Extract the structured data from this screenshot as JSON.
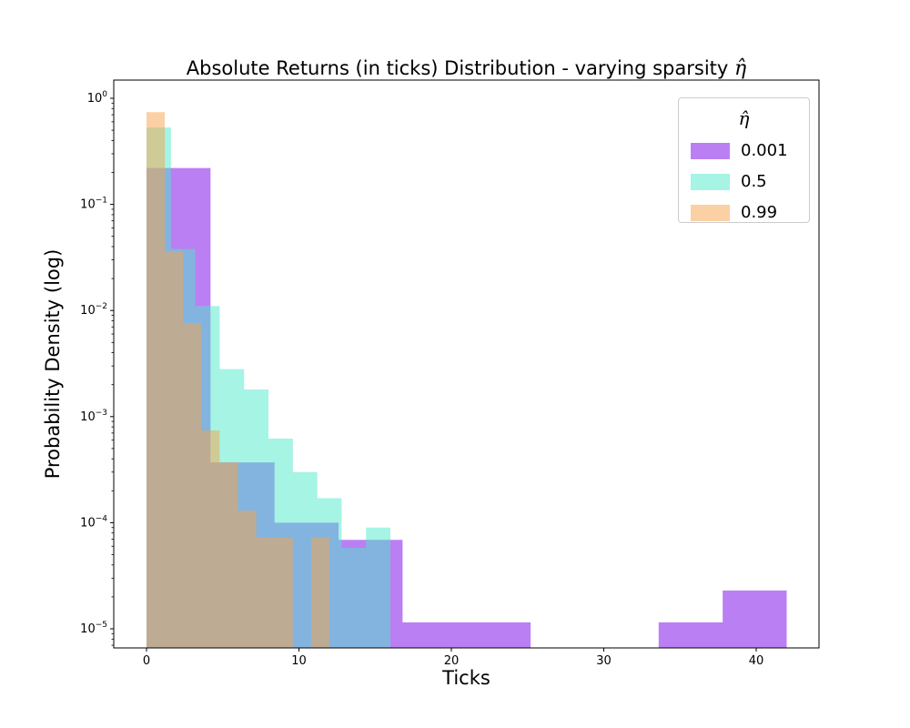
{
  "title": {
    "main": "Absolute Returns (in ticks) Distribution - varying sparsity ",
    "math": "η̂"
  },
  "axes": {
    "xlabel": "Ticks",
    "ylabel": "Probability Density (log)",
    "x_ticks": [
      0,
      10,
      20,
      30,
      40
    ],
    "y_tick_exponents": [
      0,
      -1,
      -2,
      -3,
      -4,
      -5
    ]
  },
  "legend": {
    "title": "η̂",
    "entries": [
      {
        "label": "0.001",
        "color": "rgba(119,0,233,0.5)"
      },
      {
        "label": "0.5",
        "color": "rgba(75,233,201,0.5)"
      },
      {
        "label": "0.99",
        "color": "rgba(247,161,73,0.5)"
      }
    ]
  },
  "chart_data": {
    "type": "bar",
    "subtype": "overlaid-histogram",
    "title": "Absolute Returns (in ticks) Distribution - varying sparsity η̂",
    "xlabel": "Ticks",
    "ylabel": "Probability Density (log)",
    "yscale": "log",
    "xlim": [
      -2.15,
      44.1
    ],
    "ylim": [
      6.6e-06,
      1.48
    ],
    "grid": false,
    "legend_position": "upper right",
    "series": [
      {
        "name": "0.001",
        "fill": "rgba(119,0,233,0.5)",
        "bin_start": 0,
        "bin_width": 4.2,
        "densities": [
          0.22,
          0.00037,
          0.0001,
          6.9e-05,
          1.15e-05,
          1.15e-05,
          0,
          0,
          1.15e-05,
          2.3e-05
        ]
      },
      {
        "name": "0.5",
        "fill": "rgba(75,233,201,0.5)",
        "bin_start": 0,
        "bin_width": 1.6,
        "densities": [
          0.53,
          0.038,
          0.011,
          0.0028,
          0.0018,
          0.00062,
          0.0003,
          0.00017,
          5.8e-05,
          9e-05
        ]
      },
      {
        "name": "0.99",
        "fill": "rgba(247,161,73,0.5)",
        "bin_start": 0,
        "bin_width": 1.2,
        "densities": [
          0.74,
          0.036,
          0.0076,
          0.00074,
          0.00037,
          0.00013,
          7.2e-05,
          7.2e-05,
          0,
          7.2e-05
        ]
      }
    ]
  }
}
